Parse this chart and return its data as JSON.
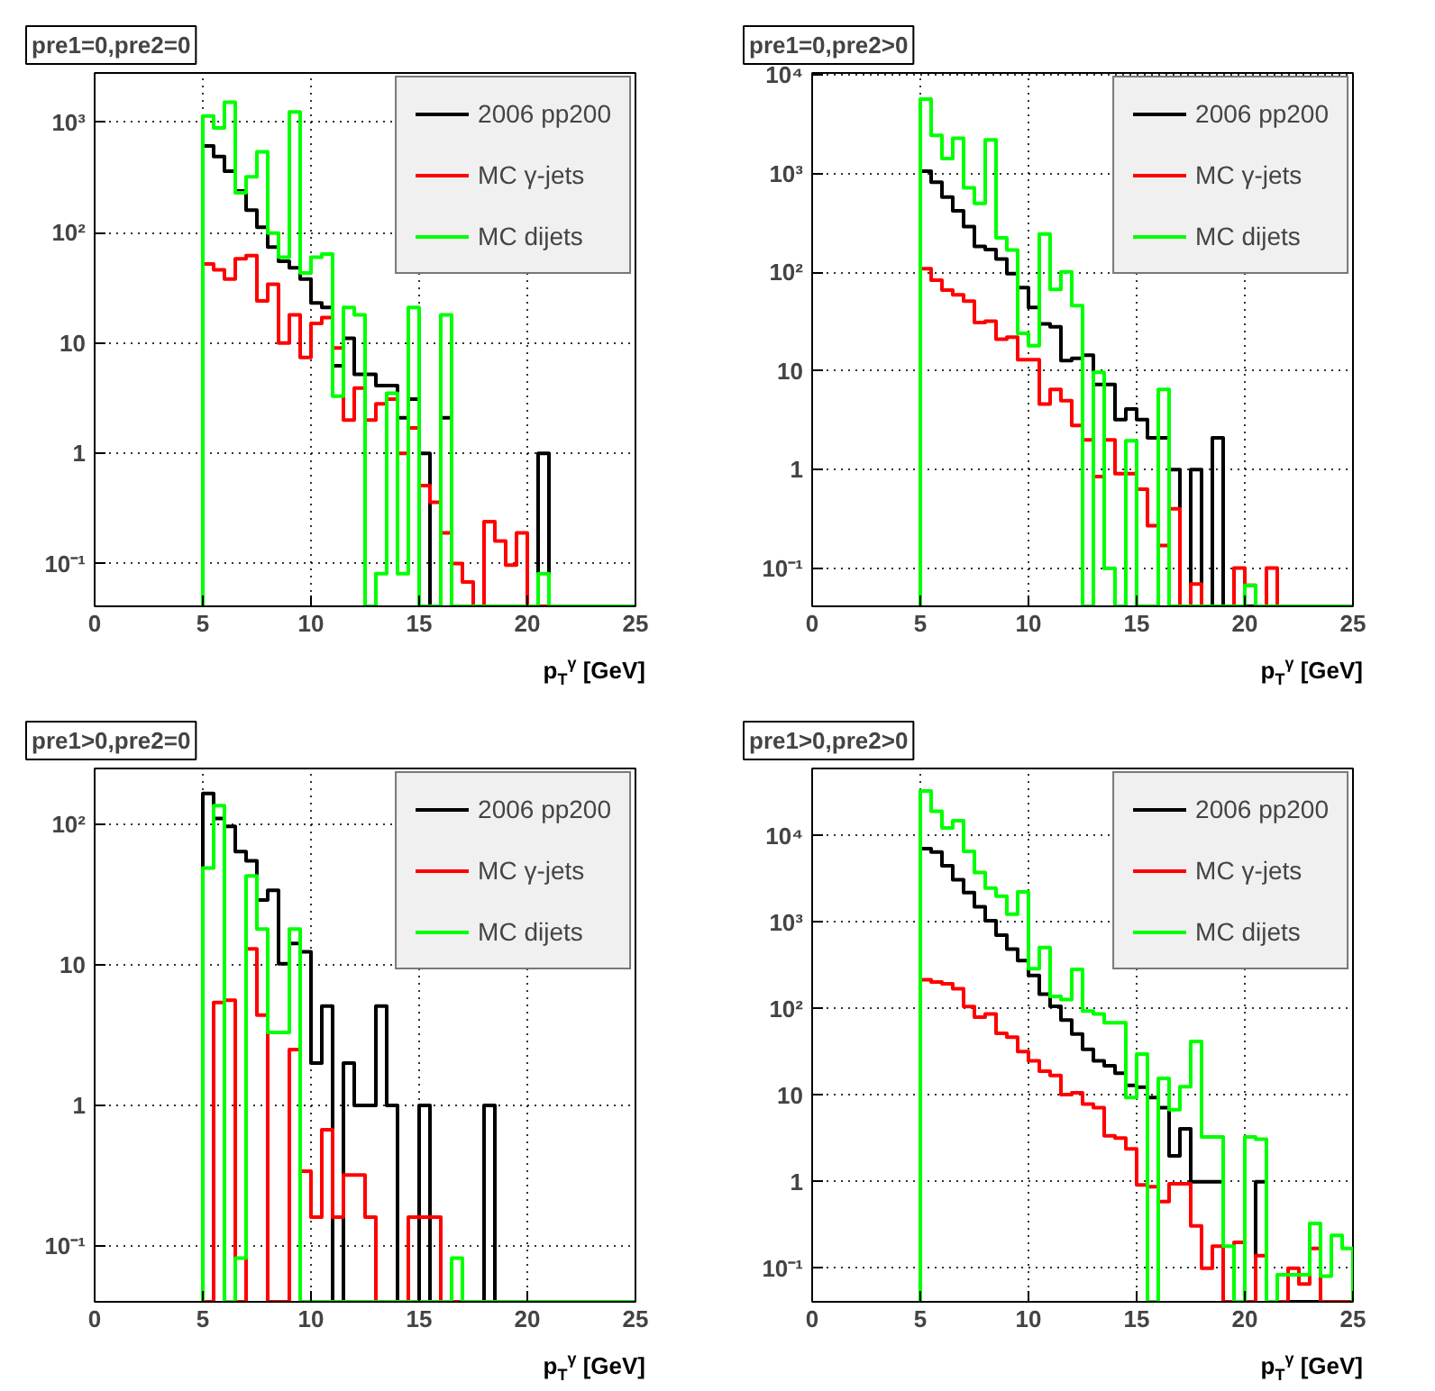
{
  "chart_data": [
    {
      "type": "histogram",
      "title": "pre1=0,pre2=0",
      "xlabel": "p$_{T}$$^{γ}$ [GeV]",
      "log": "y",
      "grid": true,
      "legend": "top right",
      "xlim": [
        0,
        25
      ],
      "xticks": [
        0,
        5,
        10,
        15,
        20,
        25
      ],
      "ylim": [
        0.041,
        2800
      ],
      "yticks": [
        {
          "value": 0.1,
          "label": "10⁻¹"
        },
        1,
        10,
        {
          "value": 100,
          "label": "10²"
        },
        {
          "value": 1000,
          "label": "10³"
        }
      ],
      "bins": [
        5,
        5.5,
        6,
        6.5,
        7,
        7.5,
        8,
        8.5,
        9,
        9.5,
        10,
        10.5,
        11,
        11.5,
        12,
        12.5,
        13,
        13.5,
        14,
        14.5,
        15,
        15.5,
        16,
        16.5,
        17,
        17.5,
        18,
        18.5,
        19,
        19.5,
        20,
        20.5,
        21,
        21.5,
        22,
        22.5,
        23,
        23.5,
        24,
        24.5,
        25
      ],
      "series": [
        {
          "name": "2006 pp200",
          "color": "#000000",
          "values": [
            610,
            490,
            360,
            238,
            160,
            112,
            74,
            55,
            48,
            38,
            23,
            21,
            6.2,
            11,
            5.2,
            5.2,
            4.1,
            4.1,
            2.1,
            3.1,
            1,
            null,
            2.1,
            null,
            null,
            null,
            null,
            null,
            null,
            null,
            null,
            1,
            null,
            null,
            null,
            null,
            null,
            null,
            null,
            null
          ]
        },
        {
          "name": "MC γ-jets",
          "color": "#ff0000",
          "values": [
            52,
            46,
            38,
            58,
            62,
            24,
            34,
            10,
            18,
            7.4,
            15,
            17,
            9,
            2.0,
            3.9,
            2.0,
            2.8,
            3.1,
            1.0,
            1.7,
            0.51,
            0.36,
            0.19,
            0.1,
            0.068,
            null,
            0.24,
            0.16,
            0.097,
            0.19,
            null,
            null,
            null,
            null,
            null,
            null,
            null,
            null,
            null,
            null
          ]
        },
        {
          "name": "MC dijets",
          "color": "#00ff00",
          "values": [
            1140,
            890,
            1520,
            230,
            320,
            540,
            99,
            60,
            1240,
            43,
            60,
            64,
            3.3,
            21,
            18,
            null,
            0.081,
            3.5,
            0.081,
            21,
            null,
            null,
            18,
            null,
            null,
            null,
            null,
            null,
            null,
            null,
            null,
            0.081,
            null,
            null,
            null,
            null,
            null,
            null,
            null,
            null
          ]
        }
      ]
    },
    {
      "type": "histogram",
      "title": "pre1=0,pre2>0",
      "xlabel": "p$_{T}$$^{γ}$ [GeV]",
      "log": "y",
      "grid": true,
      "legend": "top right",
      "xlim": [
        0,
        25
      ],
      "xticks": [
        0,
        5,
        10,
        15,
        20,
        25
      ],
      "ylim": [
        0.041,
        10500
      ],
      "yticks": [
        {
          "value": 0.1,
          "label": "10⁻¹"
        },
        1,
        10,
        {
          "value": 100,
          "label": "10²"
        },
        {
          "value": 1000,
          "label": "10³"
        },
        {
          "value": 10000,
          "label": "10⁴"
        }
      ],
      "bins": [
        5,
        5.5,
        6,
        6.5,
        7,
        7.5,
        8,
        8.5,
        9,
        9.5,
        10,
        10.5,
        11,
        11.5,
        12,
        12.5,
        13,
        13.5,
        14,
        14.5,
        15,
        15.5,
        16,
        16.5,
        17,
        17.5,
        18,
        18.5,
        19,
        19.5,
        20,
        20.5,
        21,
        21.5,
        22,
        22.5,
        23,
        23.5,
        24,
        24.5,
        25
      ],
      "series": [
        {
          "name": "2006 pp200",
          "color": "#000000",
          "values": [
            1060,
            820,
            580,
            420,
            290,
            183,
            170,
            136,
            97,
            70,
            44,
            30,
            28,
            12.7,
            13.4,
            14.4,
            7.3,
            7.3,
            3.2,
            4.1,
            3.2,
            2.1,
            2.1,
            1,
            null,
            1,
            null,
            2.1,
            null,
            null,
            null,
            null,
            null,
            null,
            null,
            null,
            null,
            null,
            null,
            null
          ]
        },
        {
          "name": "MC γ-jets",
          "color": "#ff0000",
          "values": [
            109,
            83,
            66,
            59,
            51,
            31,
            32,
            21,
            22,
            13,
            13,
            4.6,
            6.5,
            5.0,
            2.8,
            2.0,
            0.85,
            2.0,
            0.91,
            0.91,
            0.63,
            0.27,
            0.17,
            0.4,
            null,
            0.069,
            null,
            null,
            null,
            0.1,
            0.067,
            null,
            0.1,
            null,
            null,
            null,
            null,
            null,
            null,
            null
          ]
        },
        {
          "name": "MC dijets",
          "color": "#00ff00",
          "values": [
            5700,
            2450,
            1420,
            2290,
            720,
            500,
            2200,
            223,
            168,
            24,
            18,
            245,
            67,
            101,
            46,
            null,
            9.7,
            0.099,
            null,
            1.96,
            null,
            null,
            6.5,
            null,
            null,
            null,
            null,
            null,
            null,
            null,
            0.067,
            null,
            null,
            null,
            null,
            null,
            null,
            null,
            null,
            null
          ]
        }
      ]
    },
    {
      "type": "histogram",
      "title": "pre1>0,pre2=0",
      "xlabel": "p$_{T}$$^{γ}$ [GeV]",
      "log": "y",
      "grid": true,
      "legend": "top right",
      "xlim": [
        0,
        25
      ],
      "xticks": [
        0,
        5,
        10,
        15,
        20,
        25
      ],
      "ylim": [
        0.04,
        250
      ],
      "yticks": [
        {
          "value": 0.1,
          "label": "10⁻¹"
        },
        1,
        10,
        {
          "value": 100,
          "label": "10²"
        }
      ],
      "bins": [
        5,
        5.5,
        6,
        6.5,
        7,
        7.5,
        8,
        8.5,
        9,
        9.5,
        10,
        10.5,
        11,
        11.5,
        12,
        12.5,
        13,
        13.5,
        14,
        14.5,
        15,
        15.5,
        16,
        16.5,
        17,
        17.5,
        18,
        18.5,
        19,
        19.5,
        20,
        20.5,
        21,
        21.5,
        22,
        22.5,
        23,
        23.5,
        24,
        24.5,
        25
      ],
      "series": [
        {
          "name": "2006 pp200",
          "color": "#000000",
          "values": [
            166,
            110,
            97,
            64,
            55,
            29,
            34,
            10.2,
            14.2,
            12.4,
            2.0,
            5.1,
            null,
            2.0,
            1.0,
            1.0,
            5.1,
            1.0,
            null,
            null,
            1.0,
            null,
            null,
            null,
            null,
            null,
            1.0,
            null,
            null,
            null,
            null,
            null,
            null,
            null,
            null,
            null,
            null,
            null,
            null,
            null
          ]
        },
        {
          "name": "MC γ-jets",
          "color": "#ff0000",
          "values": [
            null,
            5.4,
            5.6,
            null,
            13,
            4.4,
            null,
            null,
            2.5,
            0.34,
            0.16,
            0.67,
            0.16,
            0.32,
            0.32,
            0.16,
            null,
            null,
            null,
            0.16,
            0.16,
            0.16,
            null,
            null,
            null,
            null,
            null,
            null,
            null,
            null,
            null,
            null,
            null,
            null,
            null,
            null,
            null,
            null,
            null,
            null
          ]
        },
        {
          "name": "MC dijets",
          "color": "#00ff00",
          "values": [
            49,
            136,
            null,
            0.082,
            43,
            18,
            3.3,
            3.3,
            18,
            null,
            null,
            null,
            null,
            null,
            null,
            null,
            null,
            null,
            null,
            null,
            null,
            null,
            null,
            0.082,
            null,
            null,
            null,
            null,
            null,
            null,
            null,
            null,
            null,
            null,
            null,
            null,
            null,
            null,
            null,
            null
          ]
        }
      ]
    },
    {
      "type": "histogram",
      "title": "pre1>0,pre2>0",
      "xlabel": "p$_{T}$$^{γ}$ [GeV]",
      "log": "y",
      "grid": true,
      "legend": "top right",
      "xlim": [
        0,
        25
      ],
      "xticks": [
        0,
        5,
        10,
        15,
        20,
        25
      ],
      "ylim": [
        0.041,
        60000
      ],
      "yticks": [
        {
          "value": 0.1,
          "label": "10⁻¹"
        },
        1,
        10,
        {
          "value": 100,
          "label": "10²"
        },
        {
          "value": 1000,
          "label": "10³"
        },
        {
          "value": 10000,
          "label": "10⁴"
        }
      ],
      "bins": [
        5,
        5.5,
        6,
        6.5,
        7,
        7.5,
        8,
        8.5,
        9,
        9.5,
        10,
        10.5,
        11,
        11.5,
        12,
        12.5,
        13,
        13.5,
        14,
        14.5,
        15,
        15.5,
        16,
        16.5,
        17,
        17.5,
        18,
        18.5,
        19,
        19.5,
        20,
        20.5,
        21,
        21.5,
        22,
        22.5,
        23,
        23.5,
        24,
        24.5,
        25
      ],
      "series": [
        {
          "name": "2006 pp200",
          "color": "#000000",
          "values": [
            7100,
            6500,
            4500,
            3100,
            2200,
            1510,
            1040,
            710,
            490,
            360,
            243,
            148,
            107,
            74,
            51,
            34,
            25,
            22,
            18,
            13,
            12.4,
            9.4,
            7.2,
            2.0,
            4.1,
            1,
            1,
            1,
            null,
            null,
            null,
            1,
            null,
            null,
            null,
            null,
            null,
            null,
            null,
            null
          ]
        },
        {
          "name": "MC γ-jets",
          "color": "#ff0000",
          "values": [
            217,
            204,
            194,
            171,
            106,
            80,
            87,
            52,
            47,
            32,
            25,
            19,
            17,
            10.2,
            10.7,
            7.9,
            7.2,
            3.4,
            3.2,
            2.4,
            0.92,
            0.88,
            0.59,
            0.95,
            0.95,
            0.31,
            0.1,
            0.18,
            null,
            0.2,
            null,
            0.14,
            null,
            null,
            0.1,
            0.066,
            0.17,
            null,
            null,
            null
          ]
        },
        {
          "name": "MC dijets",
          "color": "#00ff00",
          "values": [
            33000,
            19200,
            12300,
            14900,
            6600,
            3750,
            2480,
            2010,
            1240,
            2250,
            290,
            510,
            139,
            128,
            285,
            94,
            87,
            69,
            69,
            9.4,
            30,
            null,
            15.7,
            6.8,
            12.6,
            42,
            3.3,
            3.3,
            0.18,
            null,
            3.3,
            3.1,
            null,
            0.084,
            0.084,
            0.084,
            0.33,
            0.081,
            0.24,
            0.17
          ]
        }
      ]
    }
  ]
}
